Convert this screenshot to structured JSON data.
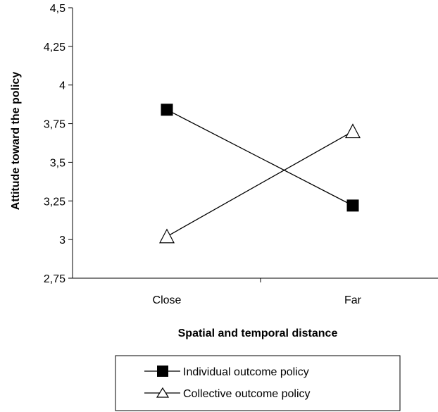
{
  "chart_data": {
    "type": "line",
    "title": "",
    "xlabel": "Spatial and temporal distance",
    "ylabel": "Attitude toward the policy",
    "categories": [
      "Close",
      "Far"
    ],
    "ylim": [
      2.75,
      4.5
    ],
    "yticks": [
      "2,75",
      "3",
      "3,25",
      "3,5",
      "3,75",
      "4",
      "4,25",
      "4,5"
    ],
    "ytick_values": [
      2.75,
      3.0,
      3.25,
      3.5,
      3.75,
      4.0,
      4.25,
      4.5
    ],
    "grid": false,
    "legend_position": "bottom",
    "series": [
      {
        "name": "Individual outcome policy",
        "values": [
          3.84,
          3.22
        ],
        "marker": "square-filled",
        "color": "#000000"
      },
      {
        "name": "Collective outcome policy",
        "values": [
          3.02,
          3.7
        ],
        "marker": "triangle-open",
        "color": "#000000"
      }
    ]
  }
}
